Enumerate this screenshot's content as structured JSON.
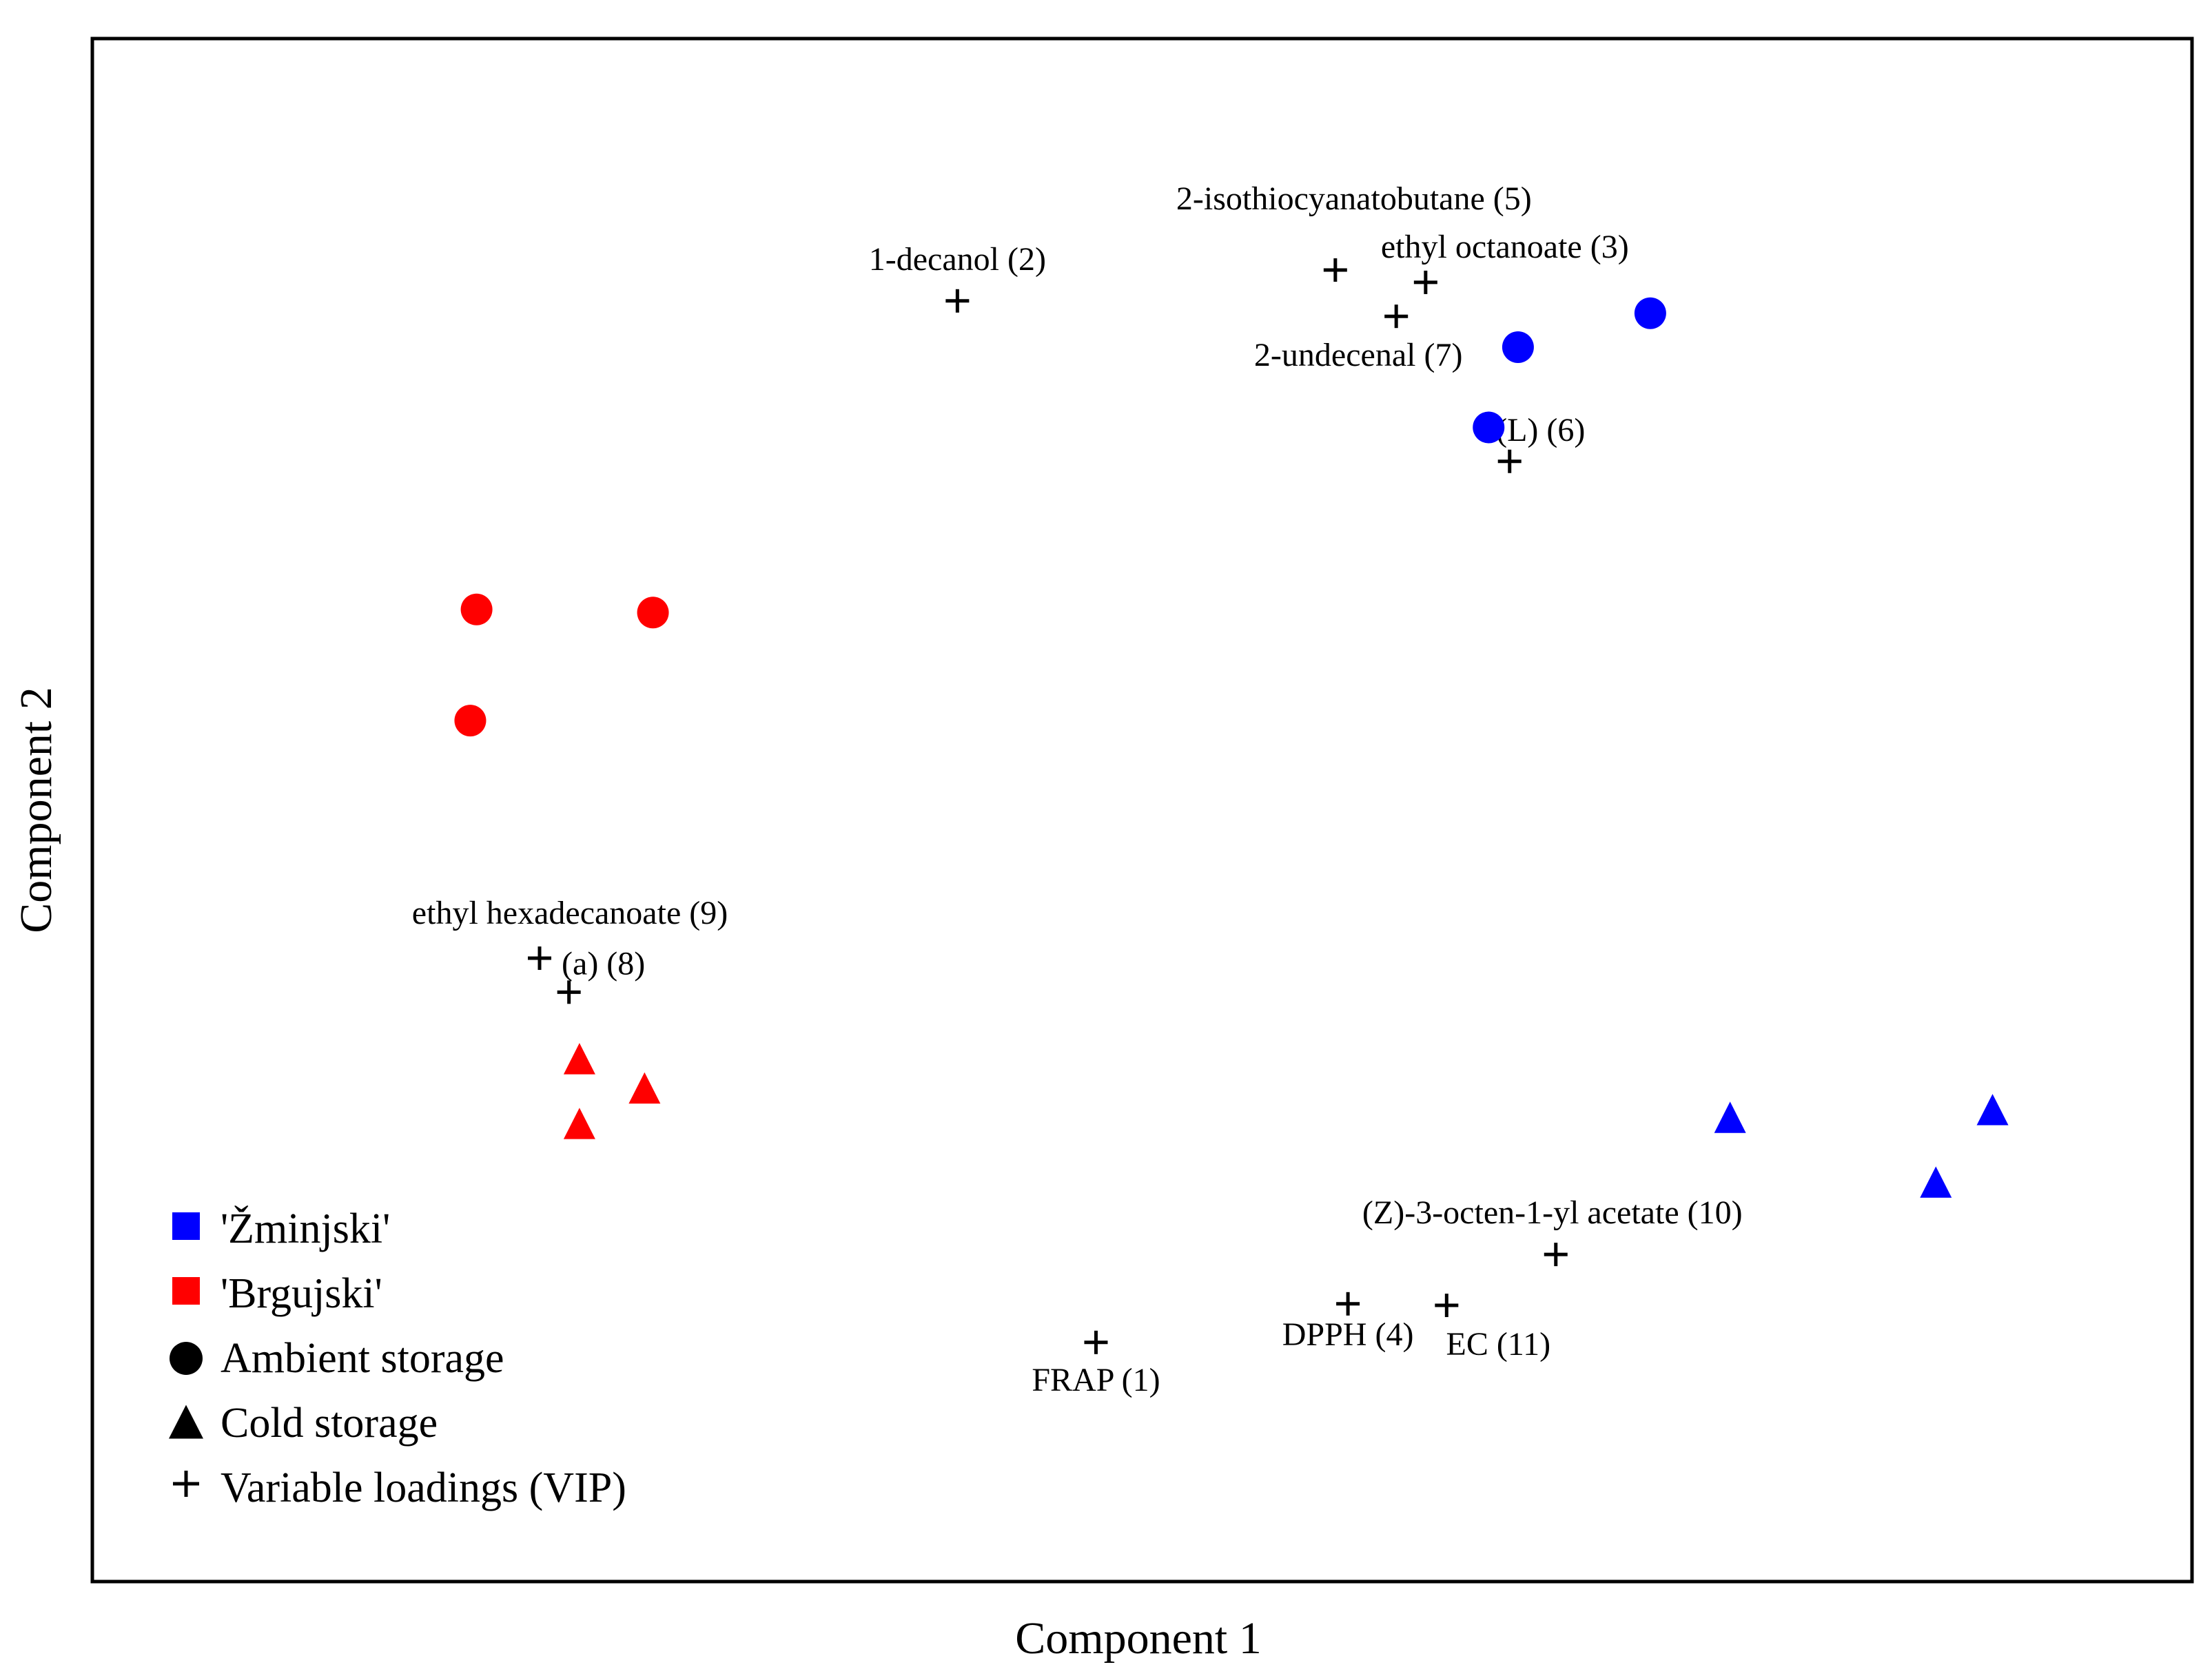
{
  "chart_data": {
    "type": "scatter",
    "title": "",
    "xlabel": "Component 1",
    "ylabel": "Component 2",
    "xlim": [
      0,
      100
    ],
    "ylim": [
      0,
      100
    ],
    "grid": false,
    "ticks_shown": false,
    "colors": {
      "zminjski": "#0000ff",
      "brgujski": "#ff0000",
      "loadings": "#000000"
    },
    "series": [
      {
        "name": "'Žminjski' Ambient storage",
        "cultivar": "'Žminjski'",
        "storage": "Ambient storage",
        "marker": "circle",
        "color": "#0000ff",
        "points": [
          {
            "x": 74.2,
            "y": 82.2
          },
          {
            "x": 67.9,
            "y": 80.0
          },
          {
            "x": 66.5,
            "y": 74.8
          }
        ]
      },
      {
        "name": "'Brgujski' Ambient storage",
        "cultivar": "'Brgujski'",
        "storage": "Ambient storage",
        "marker": "circle",
        "color": "#ff0000",
        "points": [
          {
            "x": 18.3,
            "y": 63.0
          },
          {
            "x": 26.7,
            "y": 62.8
          },
          {
            "x": 18.0,
            "y": 55.8
          }
        ]
      },
      {
        "name": "'Žminjski' Cold storage",
        "cultivar": "'Žminjski'",
        "storage": "Cold storage",
        "marker": "triangle",
        "color": "#0000ff",
        "points": [
          {
            "x": 78.0,
            "y": 30.0
          },
          {
            "x": 90.5,
            "y": 30.5
          },
          {
            "x": 87.8,
            "y": 25.8
          }
        ]
      },
      {
        "name": "'Brgujski' Cold storage",
        "cultivar": "'Brgujski'",
        "storage": "Cold storage",
        "marker": "triangle",
        "color": "#ff0000",
        "points": [
          {
            "x": 23.2,
            "y": 33.8
          },
          {
            "x": 26.3,
            "y": 31.9
          },
          {
            "x": 23.2,
            "y": 29.6
          }
        ]
      }
    ],
    "loadings": [
      {
        "label": "FRAP (1)",
        "x": 47.8,
        "y": 15.5
      },
      {
        "label": "1-decanol (2)",
        "x": 41.2,
        "y": 83.0
      },
      {
        "label": "ethyl octanoate (3)",
        "x": 63.5,
        "y": 84.2
      },
      {
        "label": "DPPH (4)",
        "x": 59.8,
        "y": 18.0
      },
      {
        "label": "2-isothiocyanatobutane (5)",
        "x": 59.2,
        "y": 85.0
      },
      {
        "label": "(L) (6)",
        "x": 67.5,
        "y": 72.6
      },
      {
        "label": "2-undecenal (7)",
        "x": 62.1,
        "y": 82.0
      },
      {
        "label": "(a) (8)",
        "x": 22.7,
        "y": 38.2
      },
      {
        "label": "ethyl hexadecanoate (9)",
        "x": 21.3,
        "y": 40.4
      },
      {
        "label": "(Z)-3-octen-1-yl acetate (10)",
        "x": 69.7,
        "y": 21.2
      },
      {
        "label": "EC (11)",
        "x": 64.5,
        "y": 17.9
      }
    ],
    "legend": {
      "position": "bottom-left",
      "entries": [
        {
          "label": "'Žminjski'",
          "symbol": "square",
          "color": "#0000ff"
        },
        {
          "label": "'Brgujski'",
          "symbol": "square",
          "color": "#ff0000"
        },
        {
          "label": "Ambient storage",
          "symbol": "circle",
          "color": "#000000"
        },
        {
          "label": "Cold storage",
          "symbol": "triangle",
          "color": "#000000"
        },
        {
          "label": "Variable loadings (VIP)",
          "symbol": "plus",
          "color": "#000000"
        }
      ]
    }
  }
}
